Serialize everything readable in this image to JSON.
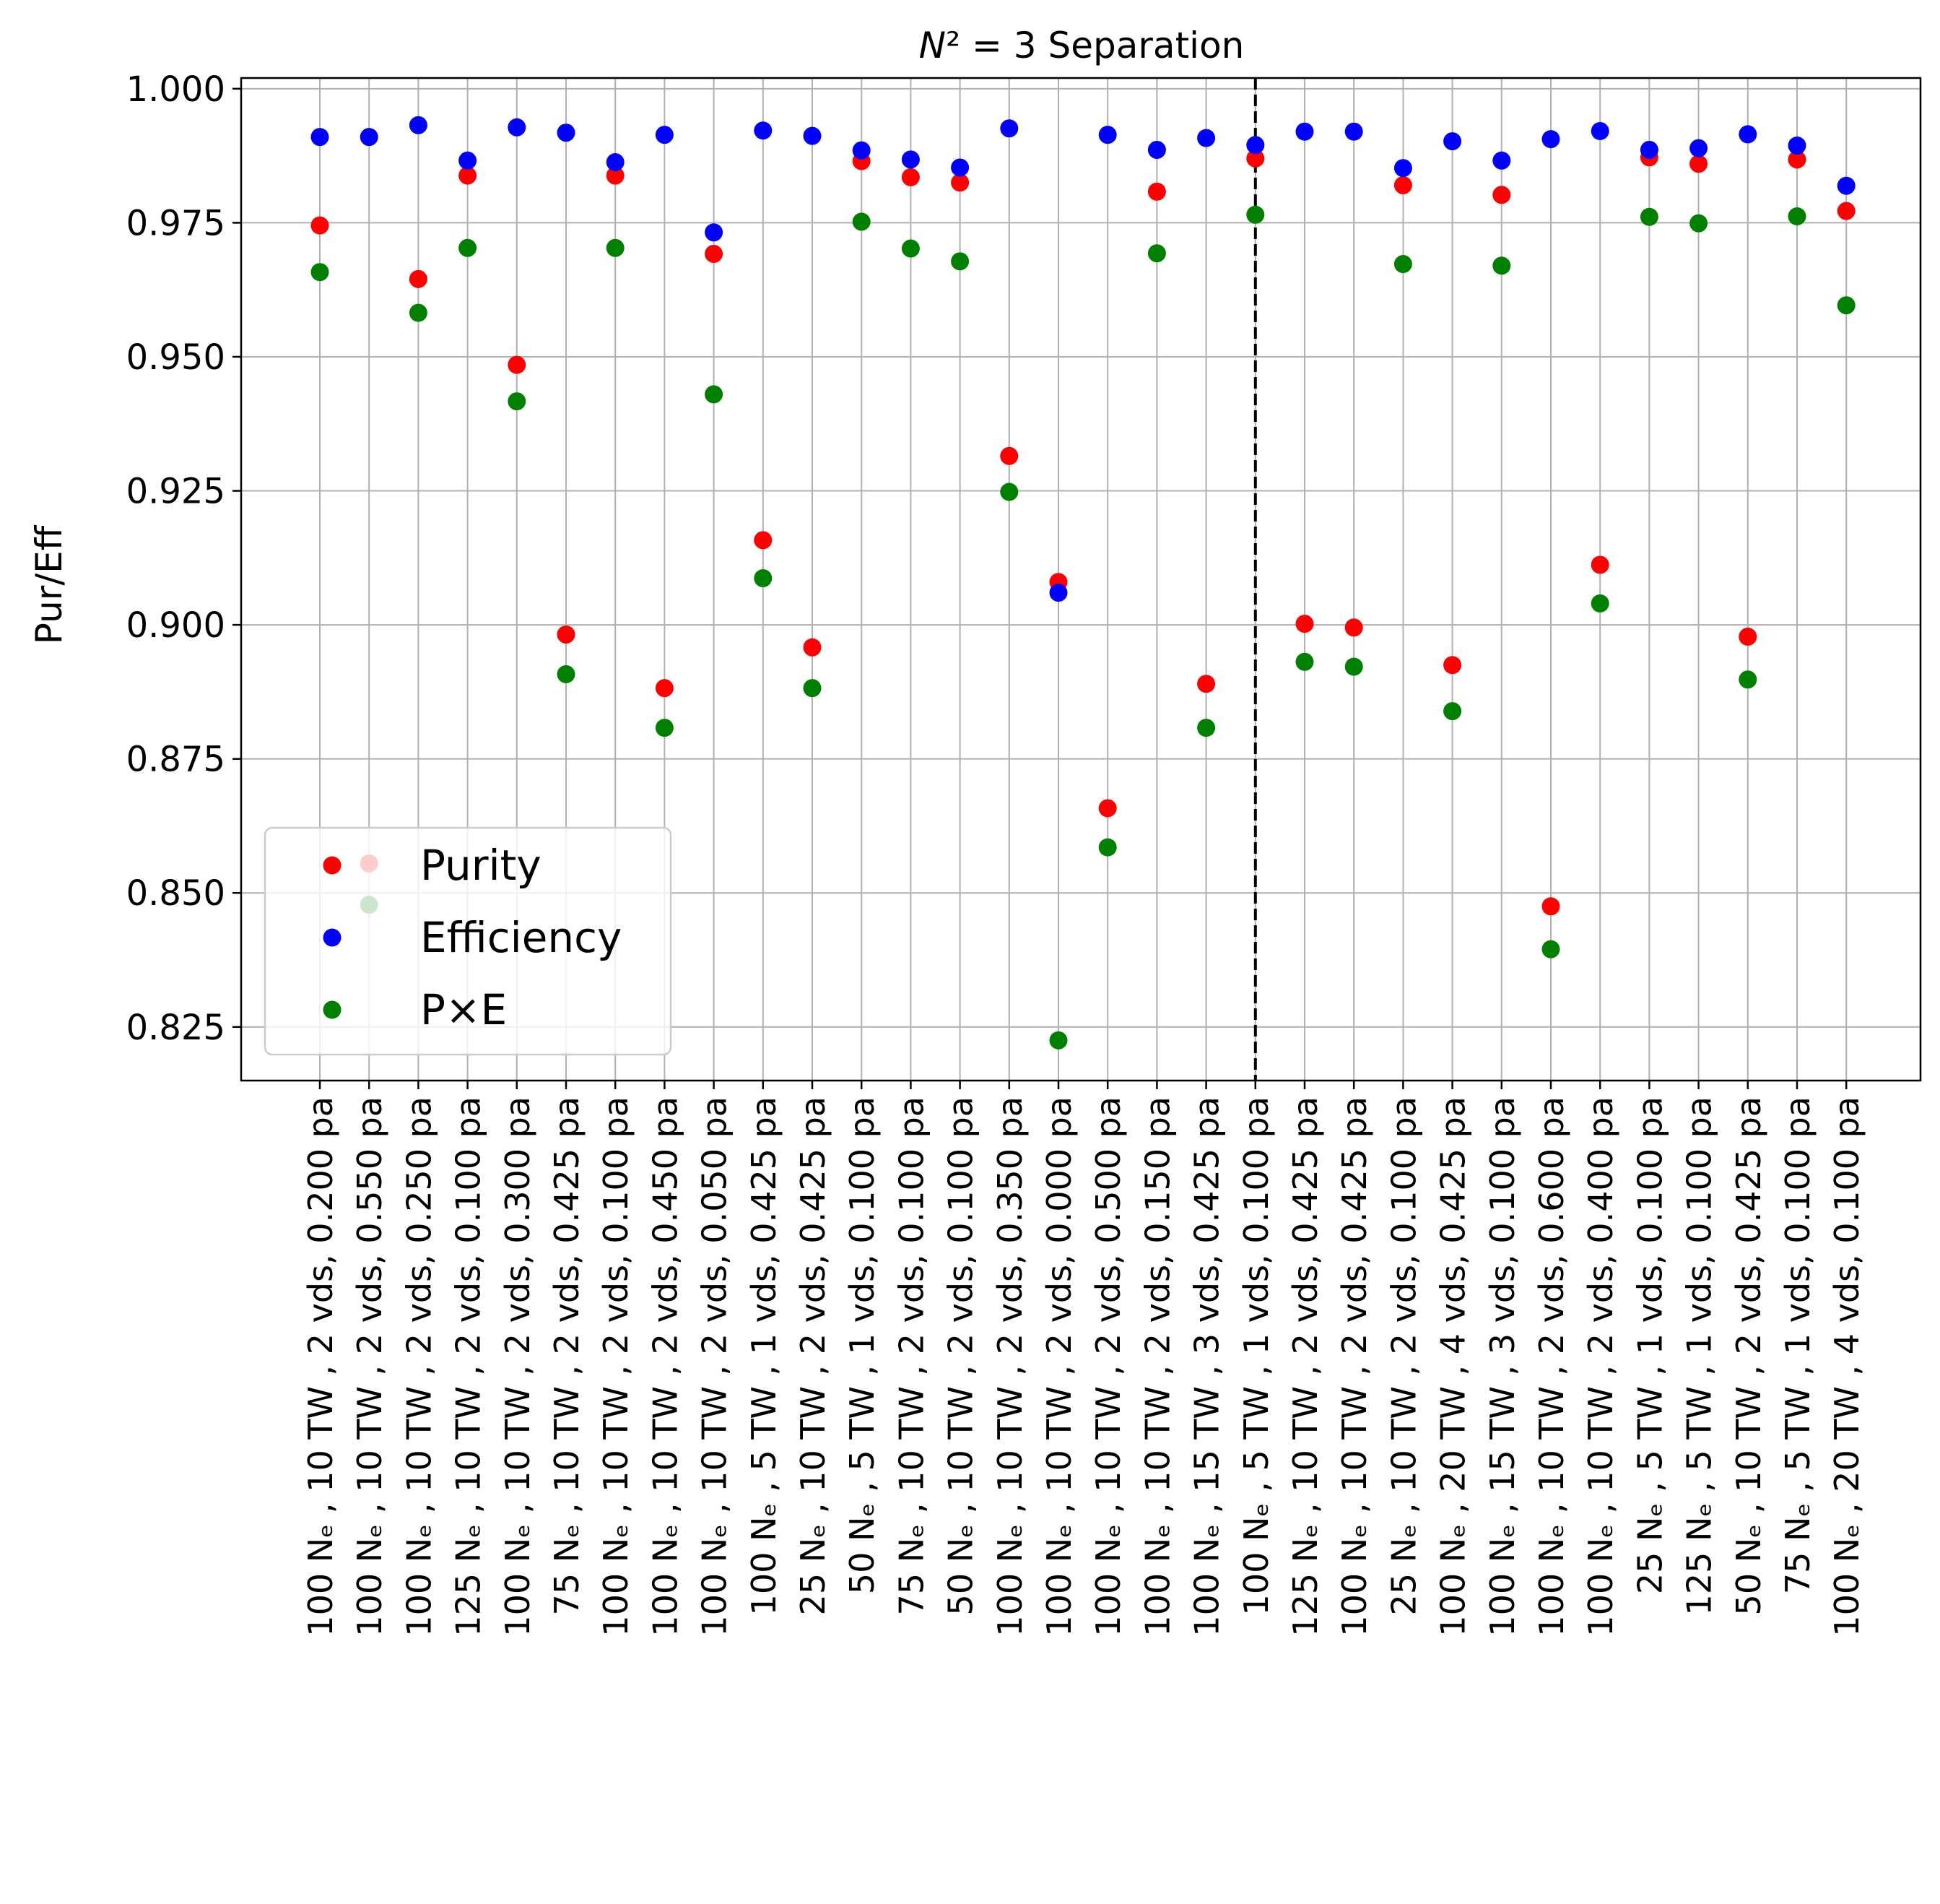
{
  "chart_data": {
    "type": "scatter",
    "title": "N² = 3 Separation",
    "ylabel": "Pur/Eff",
    "xlabel": "",
    "ylim": [
      0.815,
      1.002
    ],
    "yticks": [
      "0.825",
      "0.850",
      "0.875",
      "0.900",
      "0.925",
      "0.950",
      "0.975",
      "1.000"
    ],
    "grid": true,
    "legend_position": "lower-left",
    "vline_after_index": 19,
    "categories": [
      "100 Nₑ , 10 TW , 2 vds, 0.200 pa",
      "100 Nₑ , 10 TW , 2 vds, 0.550 pa",
      "100 Nₑ , 10 TW , 2 vds, 0.250 pa",
      "125 Nₑ , 10 TW , 2 vds, 0.100 pa",
      "100 Nₑ , 10 TW , 2 vds, 0.300 pa",
      "75 Nₑ , 10 TW , 2 vds, 0.425 pa",
      "100 Nₑ , 10 TW , 2 vds, 0.100 pa",
      "100 Nₑ , 10 TW , 2 vds, 0.450 pa",
      "100 Nₑ , 10 TW , 2 vds, 0.050 pa",
      "100 Nₑ , 5 TW , 1 vds, 0.425 pa",
      "25 Nₑ , 10 TW , 2 vds, 0.425 pa",
      "50 Nₑ , 5 TW , 1 vds, 0.100 pa",
      "75 Nₑ , 10 TW , 2 vds, 0.100 pa",
      "50 Nₑ , 10 TW , 2 vds, 0.100 pa",
      "100 Nₑ , 10 TW , 2 vds, 0.350 pa",
      "100 Nₑ , 10 TW , 2 vds, 0.000 pa",
      "100 Nₑ , 10 TW , 2 vds, 0.500 pa",
      "100 Nₑ , 10 TW , 2 vds, 0.150 pa",
      "100 Nₑ , 15 TW , 3 vds, 0.425 pa",
      "100 Nₑ , 5 TW , 1 vds, 0.100 pa",
      "125 Nₑ , 10 TW , 2 vds, 0.425 pa",
      "100 Nₑ , 10 TW , 2 vds, 0.425 pa",
      "25 Nₑ , 10 TW , 2 vds, 0.100 pa",
      "100 Nₑ , 20 TW , 4 vds, 0.425 pa",
      "100 Nₑ , 15 TW , 3 vds, 0.100 pa",
      "100 Nₑ , 10 TW , 2 vds, 0.600 pa",
      "100 Nₑ , 10 TW , 2 vds, 0.400 pa",
      "25 Nₑ , 5 TW , 1 vds, 0.100 pa",
      "125 Nₑ , 5 TW , 1 vds, 0.100 pa",
      "50 Nₑ , 10 TW , 2 vds, 0.425 pa",
      "75 Nₑ , 5 TW , 1 vds, 0.100 pa",
      "100 Nₑ , 20 TW , 4 vds, 0.100 pa"
    ],
    "series": [
      {
        "name": "Purity",
        "color": "#ff0000",
        "values": [
          0.9745,
          0.8555,
          0.9645,
          0.9838,
          0.9485,
          0.8982,
          0.9838,
          0.8882,
          0.9692,
          0.9158,
          0.8958,
          0.9865,
          0.9835,
          0.9825,
          0.9315,
          0.908,
          0.8658,
          0.9808,
          0.889,
          0.987,
          0.9002,
          0.8995,
          0.982,
          0.8925,
          0.9802,
          0.8475,
          0.9112,
          0.9872,
          0.986,
          0.8978,
          0.9868,
          0.9772
        ]
      },
      {
        "name": "Efficiency",
        "color": "#0000ff",
        "values": [
          0.991,
          0.991,
          0.9932,
          0.9866,
          0.9928,
          0.9918,
          0.9863,
          0.9914,
          0.9732,
          0.9922,
          0.9912,
          0.9885,
          0.9868,
          0.9853,
          0.9926,
          0.906,
          0.9914,
          0.9886,
          0.9908,
          0.9895,
          0.992,
          0.992,
          0.9852,
          0.9902,
          0.9866,
          0.9906,
          0.9921,
          0.9886,
          0.9889,
          0.9915,
          0.9894,
          0.9819
        ]
      },
      {
        "name": "P×E",
        "color": "#008000",
        "values": [
          0.9658,
          0.8478,
          0.9582,
          0.9703,
          0.9417,
          0.8908,
          0.9703,
          0.8808,
          0.943,
          0.9087,
          0.8882,
          0.9752,
          0.9702,
          0.9678,
          0.9248,
          0.8225,
          0.8585,
          0.9693,
          0.8808,
          0.9765,
          0.8931,
          0.8922,
          0.9673,
          0.8839,
          0.967,
          0.8395,
          0.904,
          0.9761,
          0.9749,
          0.8898,
          0.9762,
          0.9596
        ]
      }
    ]
  }
}
